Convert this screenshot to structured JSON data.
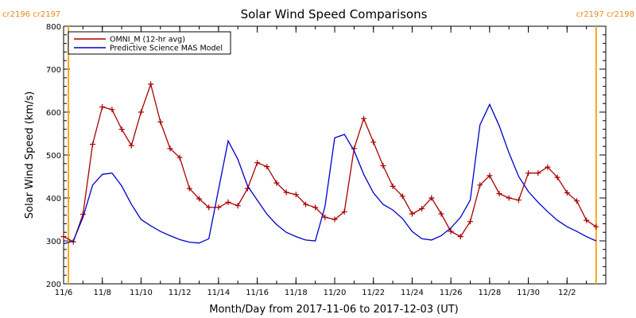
{
  "chart_data": {
    "type": "line",
    "title": "Solar Wind Speed Comparisons",
    "xlabel": "Month/Day from 2017-11-06 to 2017-12-03 (UT)",
    "ylabel": "Solar Wind Speed (km/s)",
    "xlim": [
      "2017-11-06",
      "2017-12-04"
    ],
    "ylim": [
      200,
      800
    ],
    "y_ticks": [
      200,
      300,
      400,
      500,
      600,
      700,
      800
    ],
    "x_ticks": [
      {
        "date": "2017-11-06",
        "label": "11/6"
      },
      {
        "date": "2017-11-08",
        "label": "11/8"
      },
      {
        "date": "2017-11-10",
        "label": "11/10"
      },
      {
        "date": "2017-11-12",
        "label": "11/12"
      },
      {
        "date": "2017-11-14",
        "label": "11/14"
      },
      {
        "date": "2017-11-16",
        "label": "11/16"
      },
      {
        "date": "2017-11-18",
        "label": "11/18"
      },
      {
        "date": "2017-11-20",
        "label": "11/20"
      },
      {
        "date": "2017-11-22",
        "label": "11/22"
      },
      {
        "date": "2017-11-24",
        "label": "11/24"
      },
      {
        "date": "2017-11-26",
        "label": "11/26"
      },
      {
        "date": "2017-11-28",
        "label": "11/28"
      },
      {
        "date": "2017-11-30",
        "label": "11/30"
      },
      {
        "date": "2017-12-02",
        "label": "12/2"
      }
    ],
    "carrington_markers": [
      {
        "date": "2017-11-06 06:00",
        "label": "cr2196 cr2197",
        "label_side": "right"
      },
      {
        "date": "2017-12-03 12:00",
        "label": "cr2197 cr2198",
        "label_side": "left"
      }
    ],
    "legend": {
      "position": "top-left"
    },
    "series": [
      {
        "name": "OMNI_M (12-hr avg)",
        "color": "#aa0000",
        "markers": true,
        "points": [
          [
            "2017-11-06 00:00",
            310
          ],
          [
            "2017-11-06 12:00",
            298
          ],
          [
            "2017-11-07 00:00",
            362
          ],
          [
            "2017-11-07 12:00",
            525
          ],
          [
            "2017-11-08 00:00",
            612
          ],
          [
            "2017-11-08 12:00",
            606
          ],
          [
            "2017-11-09 00:00",
            560
          ],
          [
            "2017-11-09 12:00",
            522
          ],
          [
            "2017-11-10 00:00",
            600
          ],
          [
            "2017-11-10 12:00",
            665
          ],
          [
            "2017-11-11 00:00",
            577
          ],
          [
            "2017-11-11 12:00",
            515
          ],
          [
            "2017-11-12 00:00",
            494
          ],
          [
            "2017-11-12 12:00",
            422
          ],
          [
            "2017-11-13 00:00",
            398
          ],
          [
            "2017-11-13 12:00",
            378
          ],
          [
            "2017-11-14 00:00",
            378
          ],
          [
            "2017-11-14 12:00",
            390
          ],
          [
            "2017-11-15 00:00",
            382
          ],
          [
            "2017-11-15 12:00",
            422
          ],
          [
            "2017-11-16 00:00",
            482
          ],
          [
            "2017-11-16 12:00",
            473
          ],
          [
            "2017-11-17 00:00",
            435
          ],
          [
            "2017-11-17 12:00",
            413
          ],
          [
            "2017-11-18 00:00",
            408
          ],
          [
            "2017-11-18 12:00",
            385
          ],
          [
            "2017-11-19 00:00",
            378
          ],
          [
            "2017-11-19 12:00",
            355
          ],
          [
            "2017-11-20 00:00",
            350
          ],
          [
            "2017-11-20 12:00",
            368
          ],
          [
            "2017-11-21 00:00",
            515
          ],
          [
            "2017-11-21 12:00",
            585
          ],
          [
            "2017-11-22 00:00",
            530
          ],
          [
            "2017-11-22 12:00",
            475
          ],
          [
            "2017-11-23 00:00",
            427
          ],
          [
            "2017-11-23 12:00",
            404
          ],
          [
            "2017-11-24 00:00",
            363
          ],
          [
            "2017-11-24 12:00",
            375
          ],
          [
            "2017-11-25 00:00",
            400
          ],
          [
            "2017-11-25 12:00",
            363
          ],
          [
            "2017-11-26 00:00",
            322
          ],
          [
            "2017-11-26 12:00",
            310
          ],
          [
            "2017-11-27 00:00",
            345
          ],
          [
            "2017-11-27 12:00",
            430
          ],
          [
            "2017-11-28 00:00",
            452
          ],
          [
            "2017-11-28 12:00",
            410
          ],
          [
            "2017-11-29 00:00",
            400
          ],
          [
            "2017-11-29 12:00",
            395
          ],
          [
            "2017-11-30 00:00",
            458
          ],
          [
            "2017-11-30 12:00",
            458
          ],
          [
            "2017-12-01 00:00",
            472
          ],
          [
            "2017-12-01 12:00",
            448
          ],
          [
            "2017-12-02 00:00",
            412
          ],
          [
            "2017-12-02 12:00",
            393
          ],
          [
            "2017-12-03 00:00",
            348
          ],
          [
            "2017-12-03 12:00",
            333
          ]
        ]
      },
      {
        "name": "Predictive Science MAS Model",
        "color": "#0000cc",
        "markers": false,
        "points": [
          [
            "2017-11-06 00:00",
            293
          ],
          [
            "2017-11-06 12:00",
            300
          ],
          [
            "2017-11-07 00:00",
            355
          ],
          [
            "2017-11-07 12:00",
            430
          ],
          [
            "2017-11-08 00:00",
            455
          ],
          [
            "2017-11-08 12:00",
            458
          ],
          [
            "2017-11-09 00:00",
            428
          ],
          [
            "2017-11-09 12:00",
            385
          ],
          [
            "2017-11-10 00:00",
            350
          ],
          [
            "2017-11-10 12:00",
            335
          ],
          [
            "2017-11-11 00:00",
            322
          ],
          [
            "2017-11-11 12:00",
            312
          ],
          [
            "2017-11-12 00:00",
            303
          ],
          [
            "2017-11-12 12:00",
            297
          ],
          [
            "2017-11-13 00:00",
            295
          ],
          [
            "2017-11-13 12:00",
            305
          ],
          [
            "2017-11-14 00:00",
            420
          ],
          [
            "2017-11-14 12:00",
            533
          ],
          [
            "2017-11-15 00:00",
            490
          ],
          [
            "2017-11-15 12:00",
            428
          ],
          [
            "2017-11-16 00:00",
            395
          ],
          [
            "2017-11-16 12:00",
            362
          ],
          [
            "2017-11-17 00:00",
            338
          ],
          [
            "2017-11-17 12:00",
            320
          ],
          [
            "2017-11-18 00:00",
            310
          ],
          [
            "2017-11-18 12:00",
            302
          ],
          [
            "2017-11-19 00:00",
            300
          ],
          [
            "2017-11-19 12:00",
            380
          ],
          [
            "2017-11-20 00:00",
            540
          ],
          [
            "2017-11-20 12:00",
            548
          ],
          [
            "2017-11-21 00:00",
            510
          ],
          [
            "2017-11-21 12:00",
            455
          ],
          [
            "2017-11-22 00:00",
            412
          ],
          [
            "2017-11-22 12:00",
            385
          ],
          [
            "2017-11-23 00:00",
            372
          ],
          [
            "2017-11-23 12:00",
            352
          ],
          [
            "2017-11-24 00:00",
            322
          ],
          [
            "2017-11-24 12:00",
            305
          ],
          [
            "2017-11-25 00:00",
            302
          ],
          [
            "2017-11-25 12:00",
            312
          ],
          [
            "2017-11-26 00:00",
            330
          ],
          [
            "2017-11-26 12:00",
            355
          ],
          [
            "2017-11-27 00:00",
            395
          ],
          [
            "2017-11-27 12:00",
            570
          ],
          [
            "2017-11-28 00:00",
            618
          ],
          [
            "2017-11-28 12:00",
            568
          ],
          [
            "2017-11-29 00:00",
            505
          ],
          [
            "2017-11-29 12:00",
            450
          ],
          [
            "2017-11-30 00:00",
            415
          ],
          [
            "2017-11-30 12:00",
            390
          ],
          [
            "2017-12-01 00:00",
            368
          ],
          [
            "2017-12-01 12:00",
            348
          ],
          [
            "2017-12-02 00:00",
            333
          ],
          [
            "2017-12-02 12:00",
            322
          ],
          [
            "2017-12-03 00:00",
            310
          ],
          [
            "2017-12-03 12:00",
            300
          ]
        ]
      }
    ]
  }
}
